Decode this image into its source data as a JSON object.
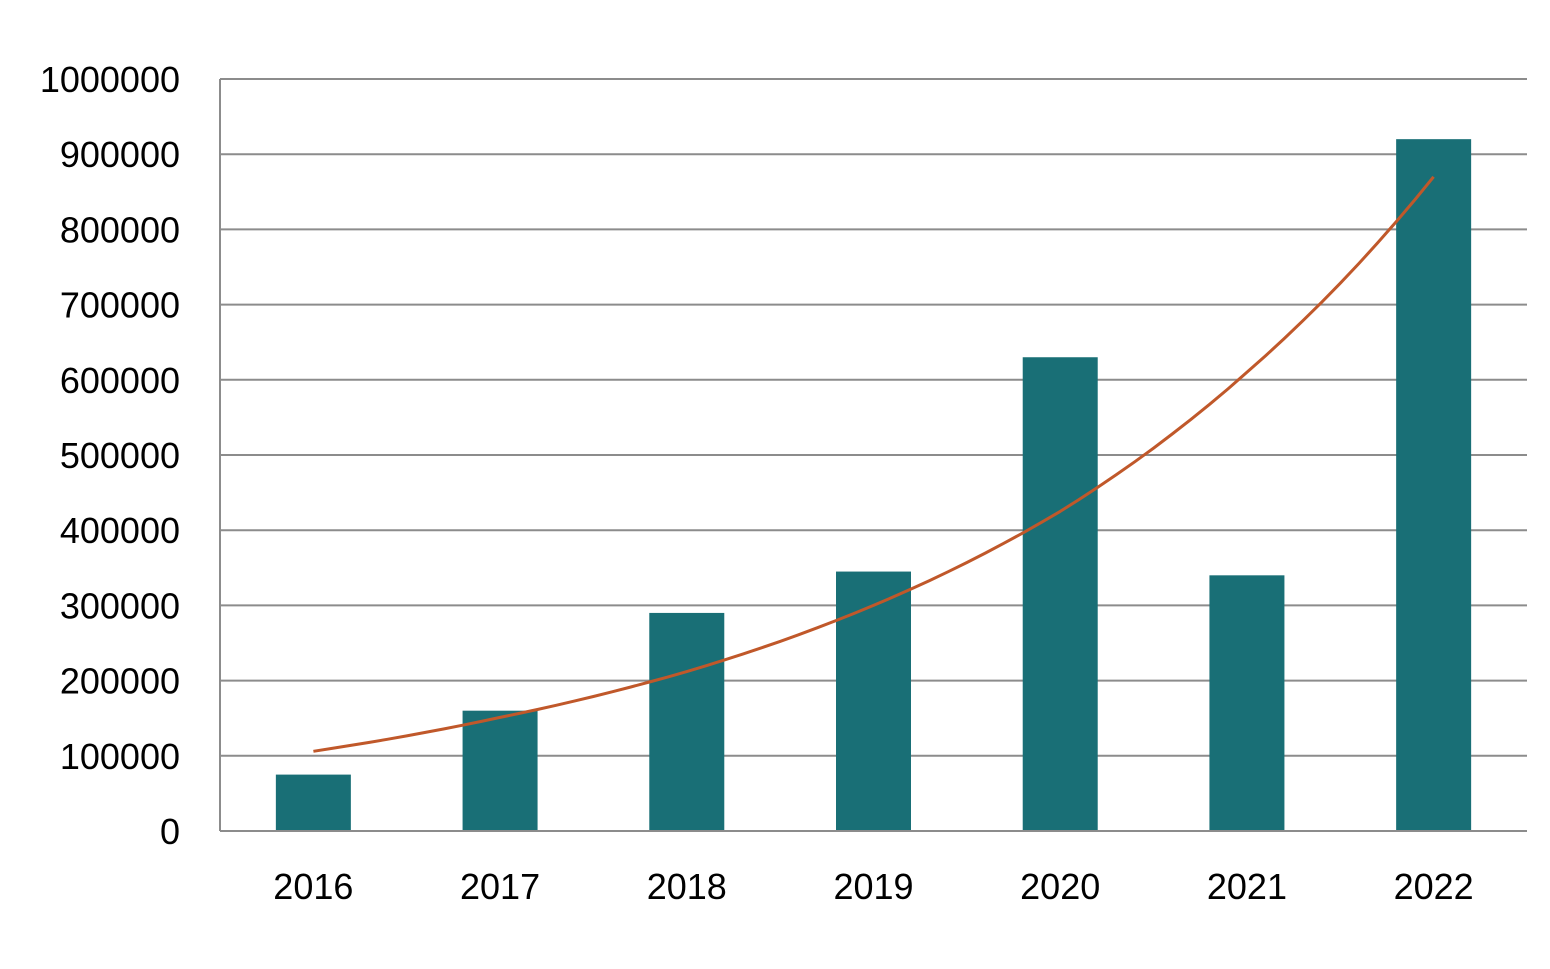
{
  "chart_data": {
    "type": "bar",
    "title": "",
    "xlabel": "",
    "ylabel": "",
    "categories": [
      "2016",
      "2017",
      "2018",
      "2019",
      "2020",
      "2021",
      "2022"
    ],
    "values": [
      75000,
      160000,
      290000,
      345000,
      630000,
      340000,
      920000
    ],
    "ylim": [
      0,
      1000000
    ],
    "yticks": [
      "0",
      "100000",
      "200000",
      "300000",
      "400000",
      "500000",
      "600000",
      "700000",
      "800000",
      "900000",
      "1000000"
    ],
    "grid": true,
    "legend": "none",
    "trendline": {
      "type": "exponential",
      "values": [
        106000,
        151000,
        212000,
        300000,
        425000,
        610000,
        870000
      ]
    },
    "colors": {
      "bar": "#196f76",
      "trendline": "#c0582a",
      "grid": "#8c8c8c"
    }
  }
}
